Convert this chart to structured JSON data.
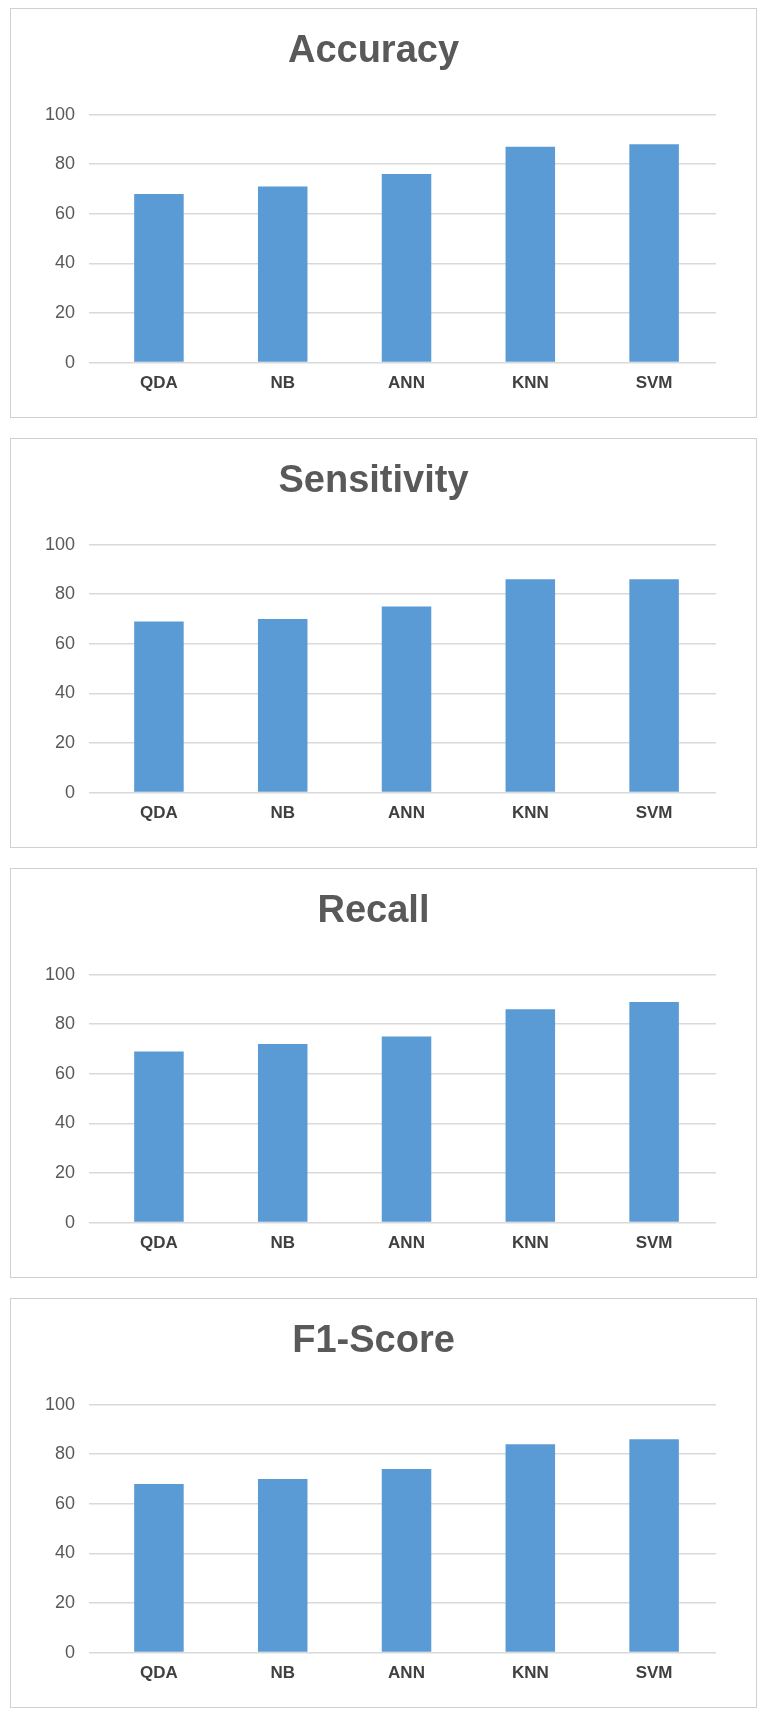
{
  "chart_data": [
    {
      "type": "bar",
      "title": "Accuracy",
      "categories": [
        "QDA",
        "NB",
        "ANN",
        "KNN",
        "SVM"
      ],
      "values": [
        68,
        71,
        76,
        87,
        88
      ],
      "color": "#5b9bd5",
      "ylim": [
        0,
        100
      ],
      "yticks": [
        0,
        20,
        40,
        60,
        80,
        100
      ],
      "grid": "y"
    },
    {
      "type": "bar",
      "title": "Sensitivity",
      "categories": [
        "QDA",
        "NB",
        "ANN",
        "KNN",
        "SVM"
      ],
      "values": [
        69,
        70,
        75,
        86,
        86
      ],
      "color": "#5b9bd5",
      "ylim": [
        0,
        100
      ],
      "yticks": [
        0,
        20,
        40,
        60,
        80,
        100
      ],
      "grid": "y"
    },
    {
      "type": "bar",
      "title": "Recall",
      "categories": [
        "QDA",
        "NB",
        "ANN",
        "KNN",
        "SVM"
      ],
      "values": [
        69,
        72,
        75,
        86,
        89
      ],
      "color": "#5b9bd5",
      "ylim": [
        0,
        100
      ],
      "yticks": [
        0,
        20,
        40,
        60,
        80,
        100
      ],
      "grid": "y"
    },
    {
      "type": "bar",
      "title": "F1-Score",
      "categories": [
        "QDA",
        "NB",
        "ANN",
        "KNN",
        "SVM"
      ],
      "values": [
        68,
        70,
        74,
        84,
        86
      ],
      "color": "#5b9bd5",
      "ylim": [
        0,
        100
      ],
      "yticks": [
        0,
        20,
        40,
        60,
        80,
        100
      ],
      "grid": "y"
    }
  ]
}
